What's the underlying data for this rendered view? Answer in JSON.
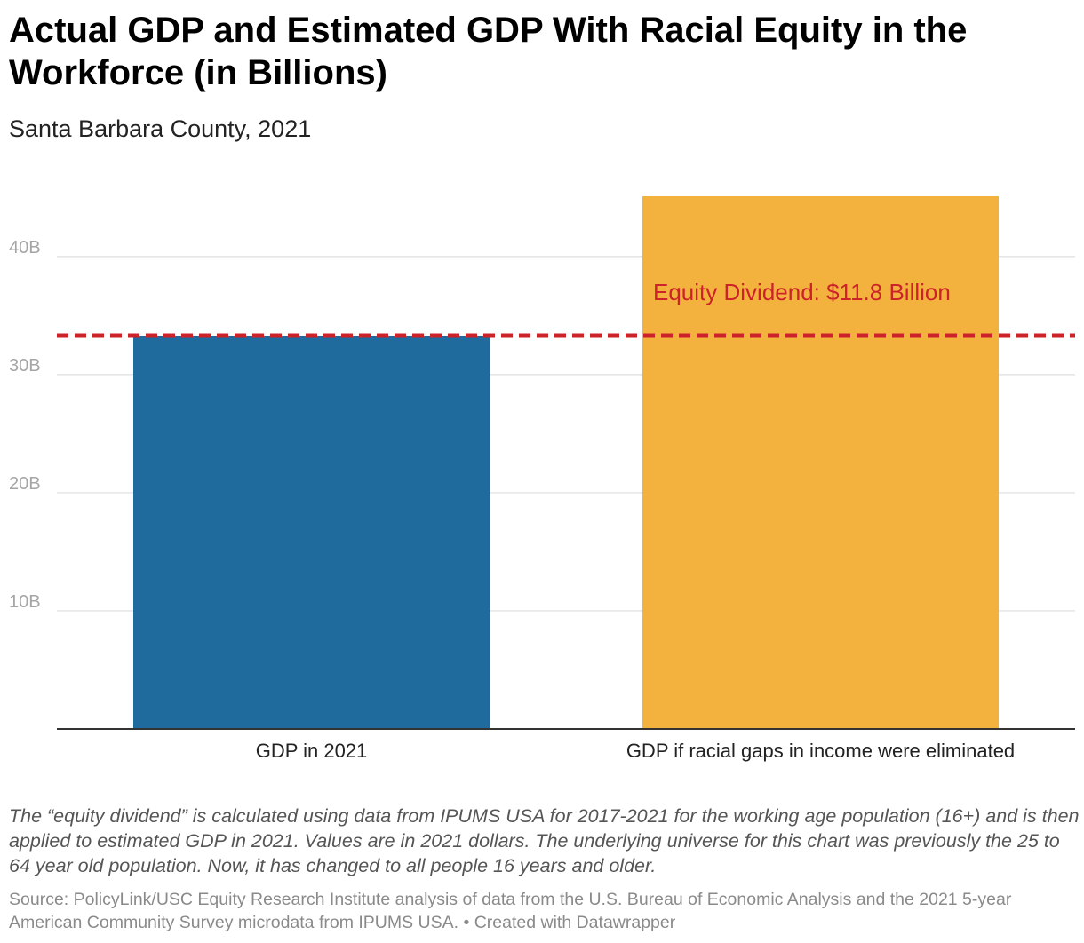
{
  "header": {
    "title": "Actual GDP and Estimated GDP With Racial Equity in the Workforce (in Billions)",
    "subtitle": "Santa Barbara County, 2021"
  },
  "chart_data": {
    "type": "bar",
    "title": "Actual GDP and Estimated GDP With Racial Equity in the Workforce (in Billions)",
    "subtitle": "Santa Barbara County, 2021",
    "categories": [
      "GDP in 2021",
      "GDP if racial gaps in income were eliminated"
    ],
    "values": [
      33.3,
      45.1
    ],
    "units": "billions of 2021 dollars",
    "colors": [
      "#1f6b9e",
      "#f3b23e"
    ],
    "ylim": [
      0,
      45.1
    ],
    "yticks": [
      10,
      20,
      30,
      40
    ],
    "ytick_labels": [
      "10B",
      "20B",
      "30B",
      "40B"
    ],
    "grid": true,
    "xlabel": "",
    "ylabel": "",
    "annotation": {
      "text": "Equity Dividend: $11.8 Billion",
      "reference_value": 33.3,
      "line_style": "dashed",
      "color": "#cc2229"
    }
  },
  "footer": {
    "notes": "The “equity dividend” is calculated using data from IPUMS USA for 2017-2021 for the working age population (16+) and is then applied to estimated GDP in 2021. Values are in 2021 dollars. The underlying universe for this chart was previously the 25 to 64 year old population. Now, it has changed to all people 16 years and older.",
    "source": "Source: PolicyLink/USC Equity Research Institute analysis of data from the U.S. Bureau of Economic Analysis and the 2021 5-year American Community Survey microdata from IPUMS USA. • Created with Datawrapper"
  }
}
